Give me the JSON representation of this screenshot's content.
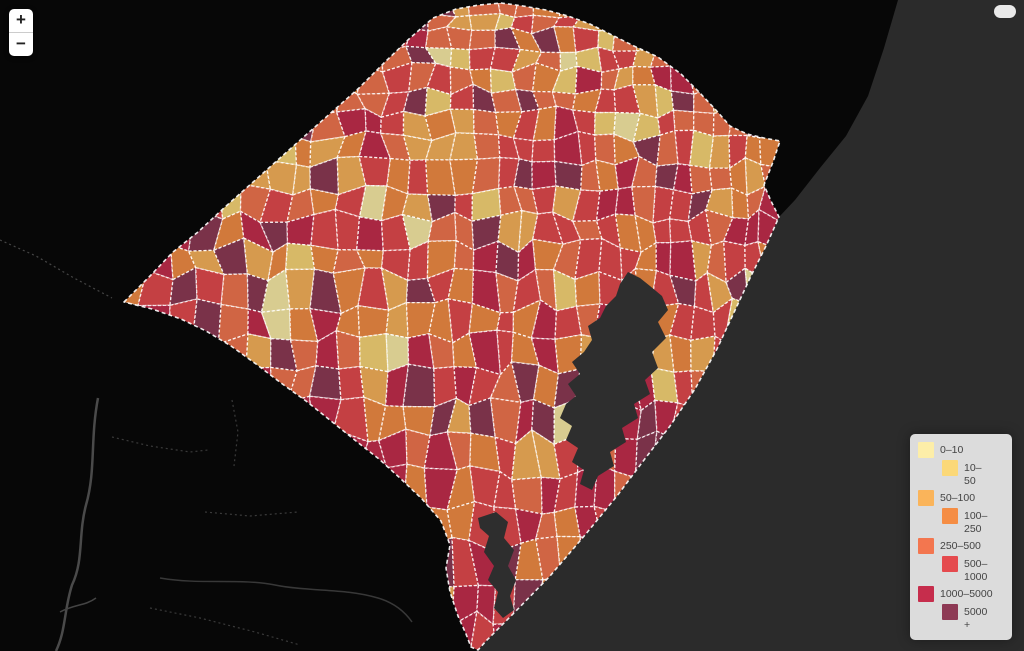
{
  "map": {
    "palette": [
      "#fdeea8",
      "#fbd878",
      "#fab45a",
      "#f58d44",
      "#f3764f",
      "#e54a4e",
      "#c62d4c",
      "#8e3a55"
    ],
    "fill_opacity": 0.85,
    "land_color": "#070707",
    "ocean_color": "#2b2b2b",
    "lagoon_color": "#2e2e2e",
    "border_color": "#ffffff",
    "legend_background": "#dcdcdc"
  },
  "controls": {
    "zoom_in_label": "+",
    "zoom_out_label": "−"
  },
  "legend": {
    "entries": [
      {
        "color": "#fdeea8",
        "line1": "0–10",
        "line2": ""
      },
      {
        "color": "#fbd878",
        "line1": "10–",
        "line2": "50"
      },
      {
        "color": "#fab45a",
        "line1": "50–100",
        "line2": ""
      },
      {
        "color": "#f58d44",
        "line1": "100–",
        "line2": "250"
      },
      {
        "color": "#f3764f",
        "line1": "250–500",
        "line2": ""
      },
      {
        "color": "#e54a4e",
        "line1": "500–",
        "line2": "1000"
      },
      {
        "color": "#c62d4c",
        "line1": "1000–5000",
        "line2": ""
      },
      {
        "color": "#8e3a55",
        "line1": "5000",
        "line2": "+"
      }
    ]
  }
}
